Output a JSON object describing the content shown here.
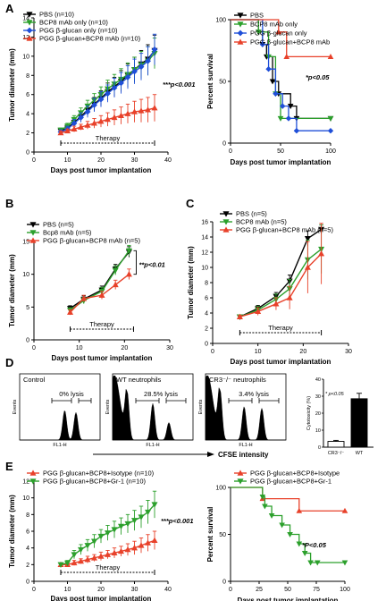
{
  "chart_data": [
    {
      "type": "line",
      "panel": "A",
      "ylabel": "Tumor diameter (mm)",
      "xlabel": "Days post tumor implantation",
      "xlim": [
        0,
        40
      ],
      "ylim": [
        0,
        14
      ],
      "xticks": [
        0,
        10,
        20,
        30,
        40
      ],
      "yticks": [
        0,
        2,
        4,
        6,
        8,
        10,
        12,
        14
      ],
      "bracket_label": "Therapy",
      "bracket": [
        8,
        36
      ],
      "annotation": "***p<0.001",
      "legend_position": "top-left",
      "series": [
        {
          "name": "PBS (n=10)",
          "color": "#000000",
          "marker": "triangle-down",
          "x": [
            8,
            10,
            12,
            14,
            16,
            18,
            20,
            22,
            24,
            26,
            28,
            30,
            32,
            34,
            36
          ],
          "y": [
            2.2,
            2.5,
            3.1,
            3.7,
            4.4,
            5.0,
            5.6,
            6.3,
            6.8,
            7.4,
            8.0,
            8.6,
            9.2,
            9.7,
            10.6
          ],
          "err": [
            0.2,
            0.3,
            0.4,
            0.5,
            0.6,
            0.7,
            0.8,
            0.9,
            1.0,
            1.1,
            1.2,
            1.3,
            1.4,
            1.5,
            1.6
          ]
        },
        {
          "name": "BCP8 mAb only (n=10)",
          "color": "#2ca02c",
          "marker": "triangle-down",
          "x": [
            8,
            10,
            12,
            14,
            16,
            18,
            20,
            22,
            24,
            26,
            28,
            30,
            32,
            34,
            36
          ],
          "y": [
            2.3,
            2.7,
            3.4,
            4.1,
            4.8,
            5.4,
            6.0,
            6.6,
            7.1,
            7.6,
            8.1,
            8.6,
            9.1,
            9.5,
            10.3
          ],
          "err": [
            0.2,
            0.3,
            0.4,
            0.5,
            0.6,
            0.7,
            0.8,
            0.9,
            1.0,
            1.1,
            1.2,
            1.3,
            1.4,
            1.5,
            1.6
          ]
        },
        {
          "name": "PGG β-glucan only (n=10)",
          "color": "#1f4fd8",
          "marker": "diamond",
          "x": [
            8,
            10,
            12,
            14,
            16,
            18,
            20,
            22,
            24,
            26,
            28,
            30,
            32,
            34,
            36
          ],
          "y": [
            2.1,
            2.4,
            3.0,
            3.6,
            4.2,
            4.9,
            5.5,
            6.1,
            6.7,
            7.2,
            7.8,
            8.4,
            8.9,
            9.5,
            10.7
          ],
          "err": [
            0.2,
            0.3,
            0.4,
            0.5,
            0.6,
            0.7,
            0.8,
            0.9,
            1.0,
            1.1,
            1.2,
            1.3,
            1.4,
            1.5,
            1.6
          ]
        },
        {
          "name": "PGG β-glucan+BCP8 mAb (n=10)",
          "color": "#e8412a",
          "marker": "triangle-up",
          "x": [
            8,
            10,
            12,
            14,
            16,
            18,
            20,
            22,
            24,
            26,
            28,
            30,
            32,
            34,
            36
          ],
          "y": [
            2.0,
            2.2,
            2.4,
            2.6,
            2.8,
            3.0,
            3.2,
            3.4,
            3.6,
            3.8,
            4.0,
            4.2,
            4.3,
            4.4,
            4.6
          ],
          "err": [
            0.2,
            0.2,
            0.3,
            0.3,
            0.4,
            0.5,
            0.6,
            0.7,
            0.8,
            0.9,
            1.0,
            1.1,
            1.2,
            1.3,
            1.4
          ]
        }
      ]
    },
    {
      "type": "line",
      "panel": "A-survival",
      "ylabel": "Percent survival",
      "xlabel": "Days post tumor implantation",
      "xlim": [
        0,
        100
      ],
      "ylim": [
        0,
        100
      ],
      "xticks": [
        0,
        50,
        100
      ],
      "yticks": [
        0,
        50,
        100
      ],
      "annotation": "*p<0.05",
      "legend_position": "top-right",
      "series": [
        {
          "name": "PBS",
          "color": "#000000",
          "marker": "triangle-down",
          "x": [
            0,
            28,
            32,
            36,
            42,
            48,
            60,
            66,
            100
          ],
          "y": [
            100,
            90,
            80,
            70,
            50,
            40,
            30,
            20,
            20
          ]
        },
        {
          "name": "BCP8 mAb only",
          "color": "#2ca02c",
          "marker": "triangle-down",
          "x": [
            0,
            28,
            38,
            45,
            50,
            100
          ],
          "y": [
            100,
            90,
            70,
            40,
            20,
            20
          ]
        },
        {
          "name": "PGG β-glucan only",
          "color": "#1f4fd8",
          "marker": "diamond",
          "x": [
            0,
            32,
            38,
            45,
            52,
            58,
            66,
            100
          ],
          "y": [
            100,
            80,
            60,
            40,
            30,
            20,
            10,
            10
          ]
        },
        {
          "name": "PGG β-glucan+BCP8 mAb",
          "color": "#e8412a",
          "marker": "triangle-up",
          "x": [
            0,
            48,
            56,
            100
          ],
          "y": [
            100,
            90,
            70,
            70
          ]
        }
      ]
    },
    {
      "type": "line",
      "panel": "B",
      "ylabel": "Tumor diameter (mm)",
      "xlabel": "Days post tumor implantation",
      "xlim": [
        0,
        30
      ],
      "ylim": [
        0,
        15
      ],
      "xticks": [
        0,
        10,
        20,
        30
      ],
      "yticks": [
        0,
        5,
        10,
        15
      ],
      "bracket_label": "Therapy",
      "bracket": [
        8,
        22
      ],
      "annotation": "**p<0.01",
      "legend_position": "top-left",
      "series": [
        {
          "name": "PBS (n=5)",
          "color": "#000000",
          "marker": "triangle-down",
          "x": [
            8,
            11,
            15,
            18,
            21
          ],
          "y": [
            4.8,
            6.2,
            7.6,
            10.8,
            13.4
          ],
          "err": [
            0.4,
            0.5,
            0.6,
            0.7,
            0.8
          ]
        },
        {
          "name": "Bcp8 mAb (n=5)",
          "color": "#2ca02c",
          "marker": "triangle-down",
          "x": [
            8,
            11,
            15,
            18,
            21
          ],
          "y": [
            4.5,
            6.0,
            7.4,
            10.6,
            13.6
          ],
          "err": [
            0.4,
            0.5,
            0.6,
            0.7,
            0.8
          ]
        },
        {
          "name": "PGG β-glucan+BCP8 mAb (n=5)",
          "color": "#e8412a",
          "marker": "triangle-up",
          "x": [
            8,
            11,
            15,
            18,
            21
          ],
          "y": [
            4.2,
            6.3,
            6.8,
            8.4,
            10.0
          ],
          "err": [
            0.4,
            0.5,
            0.6,
            0.7,
            0.8
          ]
        }
      ]
    },
    {
      "type": "line",
      "panel": "C",
      "ylabel": "Tumor diameter (mm)",
      "xlabel": "Days post tumor implantation",
      "xlim": [
        0,
        30
      ],
      "ylim": [
        0,
        16
      ],
      "xticks": [
        0,
        10,
        20,
        30
      ],
      "yticks": [
        0,
        2,
        4,
        6,
        8,
        10,
        12,
        14,
        16
      ],
      "bracket_label": "Therapy",
      "bracket": [
        6,
        24
      ],
      "legend_position": "top-left",
      "series": [
        {
          "name": "PBS (n=5)",
          "color": "#000000",
          "marker": "triangle-down",
          "x": [
            6,
            10,
            14,
            17,
            21,
            24
          ],
          "y": [
            3.5,
            4.6,
            6.2,
            8.2,
            13.8,
            15.0
          ],
          "err": [
            0.2,
            0.4,
            0.5,
            0.8,
            1.0,
            0.6
          ]
        },
        {
          "name": "BCP8 mAb (n=5)",
          "color": "#2ca02c",
          "marker": "triangle-down",
          "x": [
            6,
            10,
            14,
            17,
            21,
            24
          ],
          "y": [
            3.5,
            4.4,
            5.8,
            7.2,
            11.0,
            12.4
          ],
          "err": [
            0.2,
            0.5,
            0.7,
            1.2,
            2.6,
            3.2
          ]
        },
        {
          "name": "PGG β-glucan+BCP8 mAb (n=5)",
          "color": "#e8412a",
          "marker": "triangle-up",
          "x": [
            6,
            10,
            14,
            17,
            21,
            24
          ],
          "y": [
            3.5,
            4.2,
            5.2,
            6.0,
            10.0,
            11.8
          ],
          "err": [
            0.2,
            0.5,
            0.8,
            1.5,
            3.4,
            4.0
          ]
        }
      ]
    },
    {
      "type": "bar",
      "panel": "D-cytotoxicity",
      "ylabel": "Cytotoxicity (%)",
      "categories": [
        "CR3⁻/⁻",
        "WT"
      ],
      "values": [
        3.4,
        28.5
      ],
      "err": [
        0.6,
        3.2
      ],
      "colors": [
        "#ffffff",
        "#000000"
      ],
      "ylim": [
        0,
        40
      ],
      "yticks": [
        0,
        10,
        20,
        30,
        40
      ],
      "annotation": "* p<0.05"
    },
    {
      "type": "line",
      "panel": "E",
      "ylabel": "Tumor diameter (mm)",
      "xlabel": "Days post tumor implantation",
      "xlim": [
        0,
        40
      ],
      "ylim": [
        0,
        12
      ],
      "xticks": [
        0,
        10,
        20,
        30,
        40
      ],
      "yticks": [
        0,
        2,
        4,
        6,
        8,
        10,
        12
      ],
      "bracket_label": "Therapy",
      "bracket": [
        8,
        36
      ],
      "annotation": "***p<0.001",
      "legend_position": "top-left",
      "series": [
        {
          "name": "PGG β-glucan+BCP8+Isotype (n=10)",
          "color": "#e8412a",
          "marker": "triangle-up",
          "x": [
            8,
            10,
            12,
            14,
            16,
            18,
            20,
            22,
            24,
            26,
            28,
            30,
            32,
            34,
            36
          ],
          "y": [
            2.0,
            2.0,
            2.2,
            2.4,
            2.6,
            2.8,
            3.0,
            3.2,
            3.4,
            3.6,
            3.8,
            4.0,
            4.3,
            4.6,
            4.9
          ],
          "err": [
            0.2,
            0.2,
            0.3,
            0.3,
            0.4,
            0.4,
            0.5,
            0.5,
            0.6,
            0.6,
            0.7,
            0.8,
            0.9,
            1.0,
            1.1
          ]
        },
        {
          "name": "PGG β-glucan+BCP8+Gr-1 (n=10)",
          "color": "#2ca02c",
          "marker": "triangle-down",
          "x": [
            8,
            10,
            12,
            14,
            16,
            18,
            20,
            22,
            24,
            26,
            28,
            30,
            32,
            34,
            36
          ],
          "y": [
            2.0,
            2.2,
            3.2,
            3.8,
            4.3,
            4.8,
            5.4,
            5.8,
            6.2,
            6.6,
            6.9,
            7.3,
            7.7,
            8.3,
            9.2
          ],
          "err": [
            0.2,
            0.3,
            0.5,
            0.6,
            0.7,
            0.8,
            0.8,
            0.9,
            1.0,
            1.0,
            1.1,
            1.2,
            1.3,
            1.4,
            1.6
          ]
        }
      ]
    },
    {
      "type": "line",
      "panel": "E-survival",
      "ylabel": "Percent survival",
      "xlabel": "Days post tumor implantation",
      "xlim": [
        0,
        100
      ],
      "ylim": [
        0,
        100
      ],
      "xticks": [
        0,
        25,
        50,
        75,
        100
      ],
      "yticks": [
        0,
        50,
        100
      ],
      "annotation": "*P<0.05",
      "legend_position": "top-right",
      "series": [
        {
          "name": "PGG β-glucan+BCP8+Isotype",
          "color": "#e8412a",
          "marker": "triangle-up",
          "x": [
            0,
            28,
            60,
            100
          ],
          "y": [
            100,
            88,
            75,
            75
          ]
        },
        {
          "name": "PGG β-glucan+BCP8+Gr-1",
          "color": "#2ca02c",
          "marker": "triangle-down",
          "x": [
            0,
            28,
            30,
            36,
            45,
            52,
            60,
            65,
            70,
            76,
            100
          ],
          "y": [
            100,
            90,
            80,
            70,
            60,
            50,
            40,
            30,
            20,
            20,
            20
          ]
        }
      ]
    }
  ],
  "panel_labels": {
    "a": "A",
    "b": "B",
    "c": "C",
    "d": "D",
    "e": "E"
  },
  "flow": {
    "panels": [
      {
        "title": "Control",
        "lysis": "0% lysis"
      },
      {
        "title": "WT neutrophils",
        "lysis": "28.5% lysis"
      },
      {
        "title": "CR3⁻/⁻ neutrophils",
        "lysis": "3.4% lysis"
      }
    ],
    "xaxis_label": "FL1-H",
    "yaxis_label": "Events",
    "arrow_label": "CFSE intensity"
  }
}
